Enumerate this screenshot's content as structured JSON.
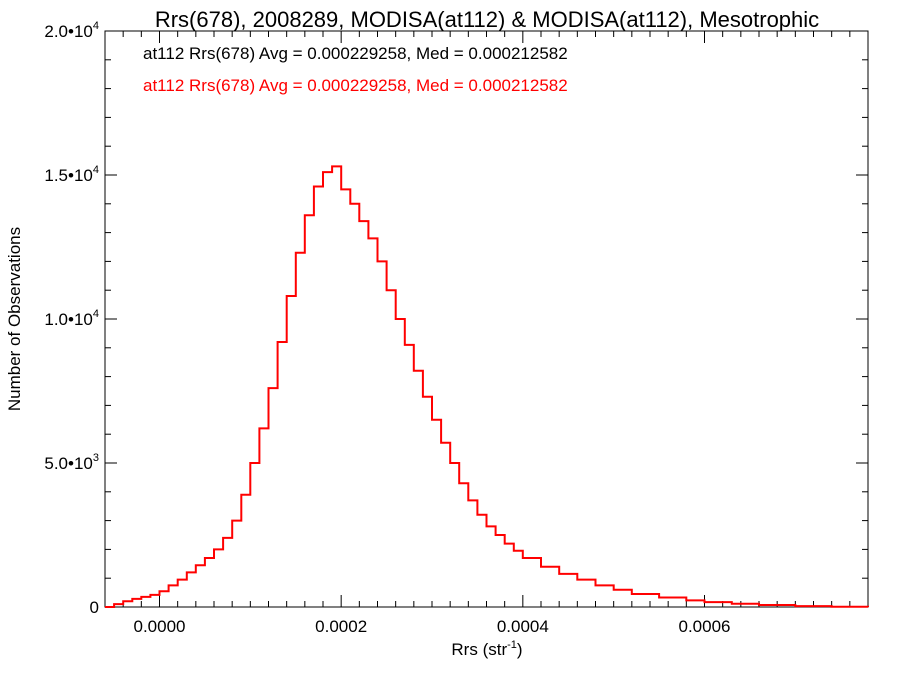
{
  "chart_data": {
    "type": "line",
    "title": "Rrs(678), 2008289, MODISA(at112) & MODISA(at112), Mesotrophic",
    "xlabel": "Rrs (str",
    "xlabel_sup": "-1",
    "xlabel_suffix": ")",
    "ylabel": "Number of Observations",
    "xlim": [
      -6e-05,
      0.00078
    ],
    "ylim": [
      0,
      20000
    ],
    "x_ticks": [
      {
        "value": 0.0,
        "label": "0.0000"
      },
      {
        "value": 0.0002,
        "label": "0.0002"
      },
      {
        "value": 0.0004,
        "label": "0.0004"
      },
      {
        "value": 0.0006,
        "label": "0.0006"
      }
    ],
    "y_ticks": [
      {
        "value": 0,
        "base": "0",
        "exp": ""
      },
      {
        "value": 5000,
        "base": "5.0•10",
        "exp": "3"
      },
      {
        "value": 10000,
        "base": "1.0•10",
        "exp": "4"
      },
      {
        "value": 15000,
        "base": "1.5•10",
        "exp": "4"
      },
      {
        "value": 20000,
        "base": "2.0•10",
        "exp": "4"
      }
    ],
    "annotations": [
      {
        "text": "at112 Rrs(678) Avg = 0.000229258, Med = 0.000212582",
        "color": "#000000"
      },
      {
        "text": "at112 Rrs(678) Avg = 0.000229258, Med = 0.000212582",
        "color": "#ff0000"
      }
    ],
    "series": [
      {
        "name": "at112",
        "color": "#ff0000",
        "x": [
          -6e-05,
          -5e-05,
          -4e-05,
          -3e-05,
          -2e-05,
          -1e-05,
          0.0,
          1e-05,
          2e-05,
          3e-05,
          4e-05,
          5e-05,
          6e-05,
          7e-05,
          8e-05,
          9e-05,
          0.0001,
          0.00011,
          0.00012,
          0.00013,
          0.00014,
          0.00015,
          0.00016,
          0.00017,
          0.00018,
          0.00019,
          0.0002,
          0.00021,
          0.00022,
          0.00023,
          0.00024,
          0.00025,
          0.00026,
          0.00027,
          0.00028,
          0.00029,
          0.0003,
          0.00031,
          0.00032,
          0.00033,
          0.00034,
          0.00035,
          0.00036,
          0.00037,
          0.00038,
          0.00039,
          0.0004,
          0.00042,
          0.00044,
          0.00046,
          0.00048,
          0.0005,
          0.00052,
          0.00055,
          0.00058,
          0.0006,
          0.00063,
          0.00066,
          0.0007,
          0.00074,
          0.00078
        ],
        "y": [
          0,
          100,
          200,
          280,
          350,
          420,
          550,
          750,
          950,
          1200,
          1450,
          1700,
          2000,
          2400,
          3000,
          3900,
          5000,
          6200,
          7600,
          9200,
          10800,
          12300,
          13600,
          14600,
          15100,
          15300,
          14500,
          14000,
          13400,
          12800,
          12000,
          11000,
          10000,
          9100,
          8200,
          7300,
          6500,
          5700,
          5000,
          4300,
          3700,
          3200,
          2800,
          2500,
          2200,
          1950,
          1700,
          1400,
          1150,
          950,
          750,
          600,
          450,
          330,
          230,
          170,
          110,
          70,
          30,
          10,
          0
        ]
      }
    ]
  }
}
